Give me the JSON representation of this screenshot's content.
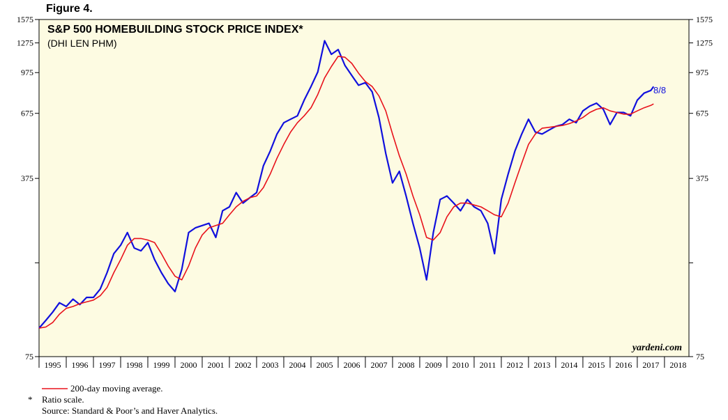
{
  "figure_label": "Figure 4.",
  "colors": {
    "plot_bg": "#fdfbe2",
    "price": "#1010dd",
    "ma": "#e8121b"
  },
  "chart_data": {
    "type": "line",
    "title": "S&P 500 HOMEBUILDING STOCK PRICE INDEX*",
    "subtitle": "(DHI LEN PHM)",
    "y_scale": "log",
    "ylim": [
      75,
      1575
    ],
    "xlim": [
      1995.0,
      2018.9
    ],
    "y_ticks": [
      1575,
      1275,
      975,
      675,
      375,
      75
    ],
    "y_minor_ticks": [
      175
    ],
    "x_tick_labels": [
      "1995",
      "1996",
      "1997",
      "1998",
      "1999",
      "2000",
      "2001",
      "2002",
      "2003",
      "2004",
      "2005",
      "2006",
      "2007",
      "2008",
      "2009",
      "2010",
      "2011",
      "2012",
      "2013",
      "2014",
      "2015",
      "2016",
      "2017",
      "2018"
    ],
    "annotation": "8/8",
    "brand": "yardeni.com",
    "series": [
      {
        "name": "S&P 500 Homebuilding Stock Price Index",
        "x": [
          1995.0,
          1995.25,
          1995.5,
          1995.75,
          1996.0,
          1996.25,
          1996.5,
          1996.75,
          1997.0,
          1997.25,
          1997.5,
          1997.75,
          1998.0,
          1998.25,
          1998.5,
          1998.75,
          1999.0,
          1999.25,
          1999.5,
          1999.75,
          2000.0,
          2000.25,
          2000.5,
          2000.75,
          2001.0,
          2001.25,
          2001.5,
          2001.75,
          2002.0,
          2002.25,
          2002.5,
          2002.75,
          2003.0,
          2003.25,
          2003.5,
          2003.75,
          2004.0,
          2004.25,
          2004.5,
          2004.75,
          2005.0,
          2005.25,
          2005.5,
          2005.75,
          2006.0,
          2006.25,
          2006.5,
          2006.75,
          2007.0,
          2007.25,
          2007.5,
          2007.75,
          2008.0,
          2008.25,
          2008.5,
          2008.75,
          2009.0,
          2009.25,
          2009.5,
          2009.75,
          2010.0,
          2010.25,
          2010.5,
          2010.75,
          2011.0,
          2011.25,
          2011.5,
          2011.75,
          2012.0,
          2012.25,
          2012.5,
          2012.75,
          2013.0,
          2013.25,
          2013.5,
          2013.75,
          2014.0,
          2014.25,
          2014.5,
          2014.75,
          2015.0,
          2015.25,
          2015.5,
          2015.75,
          2016.0,
          2016.25,
          2016.5,
          2016.75,
          2017.0,
          2017.25,
          2017.5,
          2017.6
        ],
        "values": [
          97,
          104,
          112,
          122,
          118,
          126,
          120,
          128,
          128,
          138,
          160,
          190,
          205,
          230,
          200,
          195,
          210,
          180,
          160,
          145,
          135,
          165,
          230,
          240,
          245,
          250,
          220,
          280,
          290,
          330,
          300,
          315,
          330,
          420,
          480,
          560,
          620,
          640,
          660,
          760,
          860,
          980,
          1300,
          1150,
          1200,
          1040,
          950,
          870,
          890,
          820,
          650,
          470,
          360,
          400,
          320,
          250,
          200,
          150,
          230,
          310,
          320,
          300,
          280,
          310,
          290,
          280,
          250,
          190,
          310,
          390,
          480,
          560,
          640,
          570,
          560,
          580,
          600,
          610,
          640,
          620,
          690,
          720,
          740,
          700,
          610,
          680,
          680,
          660,
          760,
          810,
          830,
          860
        ]
      },
      {
        "name": "200-day moving average.",
        "x": [
          1995.0,
          1995.25,
          1995.5,
          1995.75,
          1996.0,
          1996.25,
          1996.5,
          1996.75,
          1997.0,
          1997.25,
          1997.5,
          1997.75,
          1998.0,
          1998.25,
          1998.5,
          1998.75,
          1999.0,
          1999.25,
          1999.5,
          1999.75,
          2000.0,
          2000.25,
          2000.5,
          2000.75,
          2001.0,
          2001.25,
          2001.5,
          2001.75,
          2002.0,
          2002.25,
          2002.5,
          2002.75,
          2003.0,
          2003.25,
          2003.5,
          2003.75,
          2004.0,
          2004.25,
          2004.5,
          2004.75,
          2005.0,
          2005.25,
          2005.5,
          2005.75,
          2006.0,
          2006.25,
          2006.5,
          2006.75,
          2007.0,
          2007.25,
          2007.5,
          2007.75,
          2008.0,
          2008.25,
          2008.5,
          2008.75,
          2009.0,
          2009.25,
          2009.5,
          2009.75,
          2010.0,
          2010.25,
          2010.5,
          2010.75,
          2011.0,
          2011.25,
          2011.5,
          2011.75,
          2012.0,
          2012.25,
          2012.5,
          2012.75,
          2013.0,
          2013.25,
          2013.5,
          2013.75,
          2014.0,
          2014.25,
          2014.5,
          2014.75,
          2015.0,
          2015.25,
          2015.5,
          2015.75,
          2016.0,
          2016.25,
          2016.5,
          2016.75,
          2017.0,
          2017.25,
          2017.5,
          2017.6
        ],
        "values": [
          97,
          98,
          102,
          110,
          116,
          118,
          121,
          123,
          125,
          130,
          140,
          160,
          180,
          205,
          218,
          218,
          215,
          210,
          190,
          170,
          155,
          150,
          170,
          200,
          225,
          240,
          245,
          250,
          270,
          290,
          305,
          315,
          320,
          345,
          390,
          450,
          510,
          570,
          620,
          660,
          710,
          800,
          930,
          1030,
          1130,
          1120,
          1060,
          970,
          900,
          860,
          790,
          690,
          560,
          460,
          390,
          320,
          270,
          220,
          215,
          230,
          265,
          290,
          300,
          300,
          295,
          290,
          280,
          270,
          265,
          300,
          360,
          430,
          510,
          560,
          590,
          595,
          600,
          605,
          615,
          630,
          650,
          680,
          700,
          710,
          690,
          680,
          670,
          670,
          690,
          710,
          725,
          735
        ]
      }
    ]
  },
  "legend": {
    "ma_label": "200-day moving average."
  },
  "notes": {
    "asterisk": "*",
    "ratio": "Ratio scale.",
    "source": "Source: Standard & Poor’s and Haver Analytics."
  }
}
